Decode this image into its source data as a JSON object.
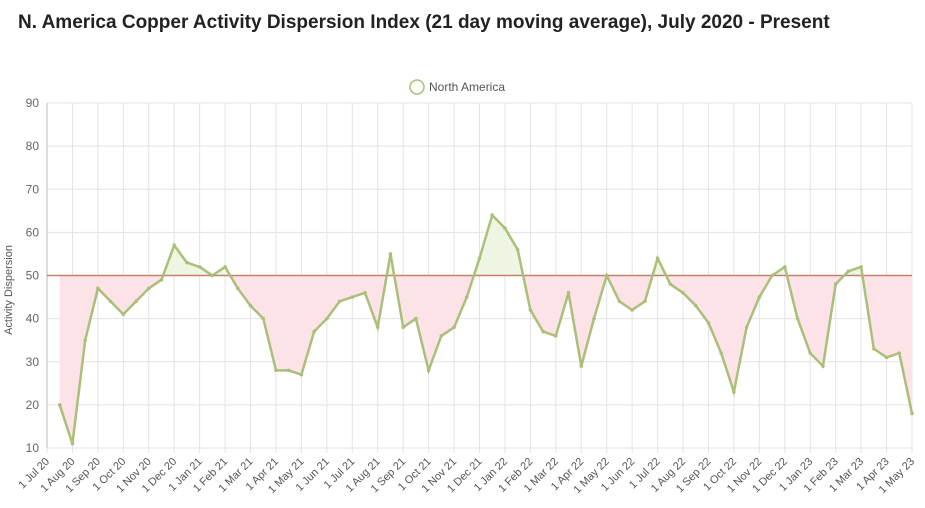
{
  "chart_data": {
    "type": "line",
    "title": "N. America Copper Activity Dispersion Index (21 day moving average), July 2020 - Present",
    "y_label": "Activity Dispersion",
    "categories": [
      "1 Jul 20",
      null,
      "1 Aug 20",
      null,
      "1 Sep 20",
      null,
      "1 Oct 20",
      null,
      "1 Nov 20",
      null,
      "1 Dec 20",
      null,
      "1 Jan 21",
      null,
      "1 Feb 21",
      null,
      "1 Mar 21",
      null,
      "1 Apr 21",
      null,
      "1 May 21",
      null,
      "1 Jun 21",
      null,
      "1 Jul 21",
      null,
      "1 Aug 21",
      null,
      "1 Sep 21",
      null,
      "1 Oct 21",
      null,
      "1 Nov 21",
      null,
      "1 Dec 21",
      null,
      "1 Jan 22",
      null,
      "1 Feb 22",
      null,
      "1 Mar 22",
      null,
      "1 Apr 22",
      null,
      "1 May 22",
      null,
      "1 Jun 22",
      null,
      "1 Jul 22",
      null,
      "1 Aug 22",
      null,
      "1 Sep 22",
      null,
      "1 Oct 22",
      null,
      "1 Nov 22",
      null,
      "1 Dec 22",
      null,
      "1 Jan 23",
      null,
      "1 Feb 23",
      null,
      "1 Mar 23",
      null,
      "1 Apr 23",
      null,
      "1 May 23"
    ],
    "series": [
      {
        "name": "North America",
        "color": "#a9bf7a",
        "values": [
          null,
          20,
          11,
          35,
          47,
          44,
          41,
          44,
          47,
          49,
          57,
          53,
          52,
          50,
          52,
          47,
          43,
          40,
          28,
          28,
          27,
          37,
          40,
          44,
          45,
          46,
          38,
          55,
          38,
          40,
          28,
          36,
          38,
          45,
          54,
          64,
          61,
          56,
          42,
          37,
          36,
          46,
          29,
          40,
          50,
          44,
          42,
          44,
          54,
          48,
          46,
          43,
          39,
          32,
          23,
          38,
          45,
          50,
          52,
          40,
          32,
          29,
          48,
          51,
          52,
          33,
          31,
          32,
          18
        ]
      }
    ],
    "reference_line": 50,
    "reference_color": "#c0826a",
    "above_color": "#eef5e2",
    "below_color": "#fde3e8",
    "ylim": [
      10,
      90
    ],
    "yticks": [
      10,
      20,
      30,
      40,
      50,
      60,
      70,
      80,
      90
    ],
    "grid": true
  }
}
